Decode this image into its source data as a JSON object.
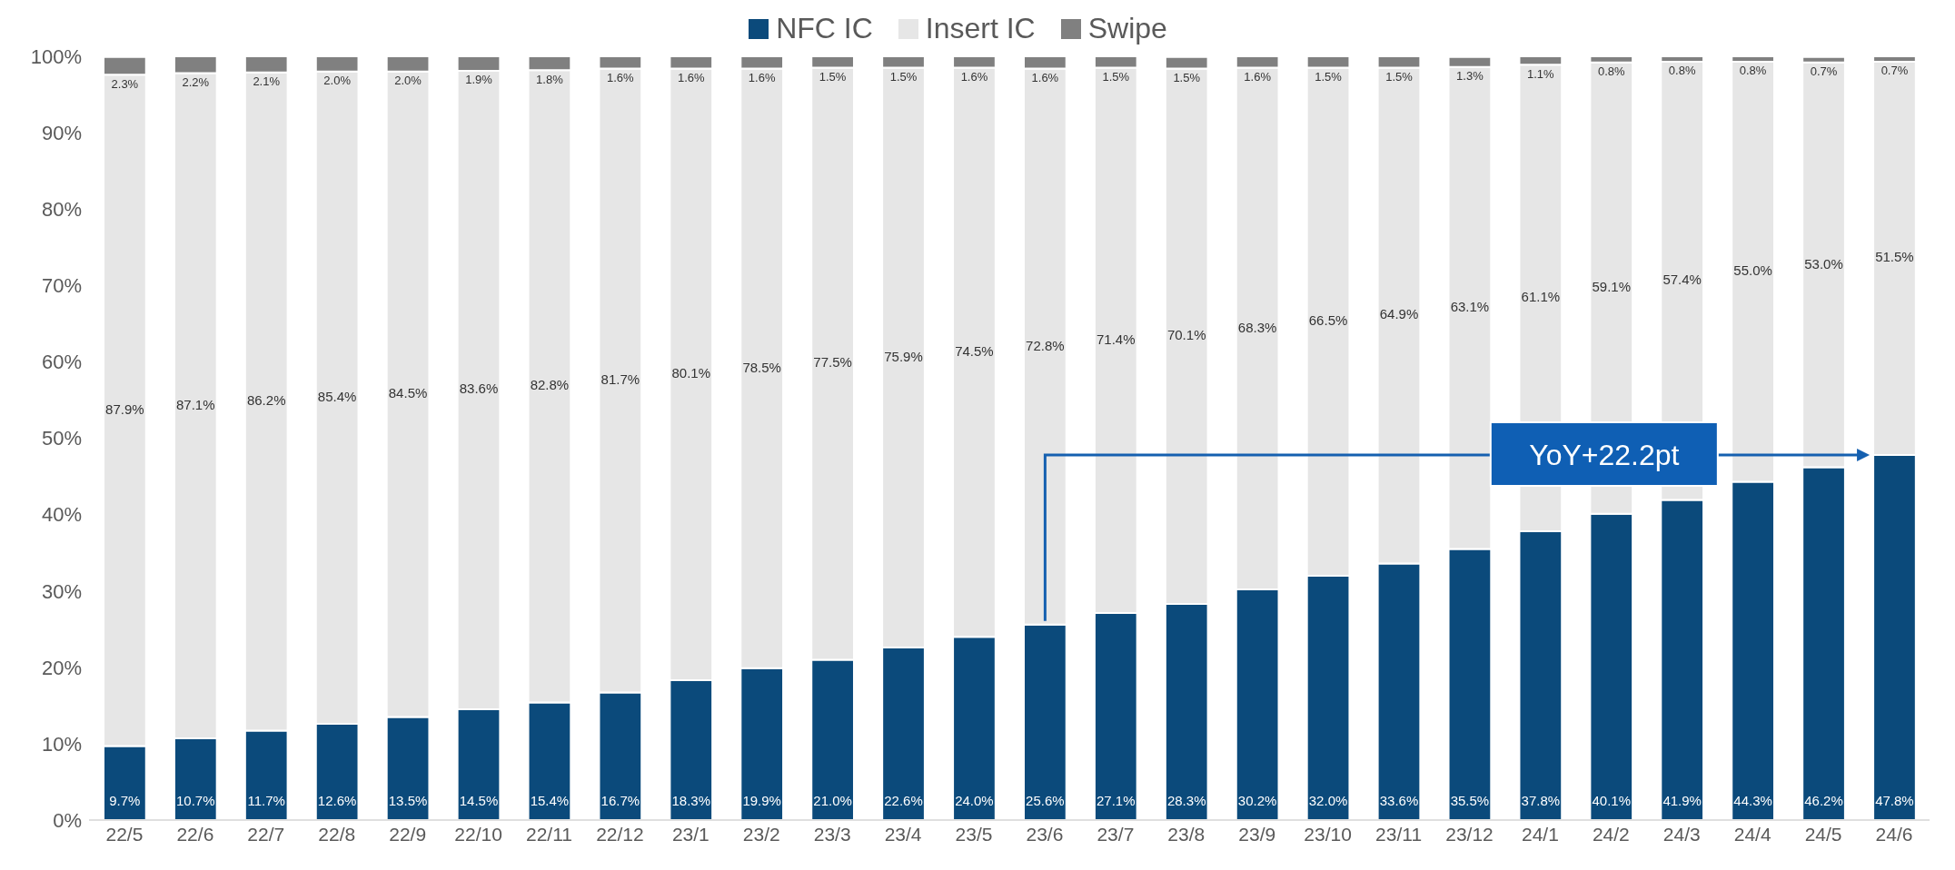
{
  "chart_data": {
    "type": "bar",
    "stacked": true,
    "legend": "top",
    "categories": [
      "22/5",
      "22/6",
      "22/7",
      "22/8",
      "22/9",
      "22/10",
      "22/11",
      "22/12",
      "23/1",
      "23/2",
      "23/3",
      "23/4",
      "23/5",
      "23/6",
      "23/7",
      "23/8",
      "23/9",
      "23/10",
      "23/11",
      "23/12",
      "24/1",
      "24/2",
      "24/3",
      "24/4",
      "24/5",
      "24/6"
    ],
    "series": [
      {
        "name": "NFC IC",
        "color": "#0b4a7b",
        "values": [
          9.7,
          10.7,
          11.7,
          12.6,
          13.5,
          14.5,
          15.4,
          16.7,
          18.3,
          19.9,
          21.0,
          22.6,
          24.0,
          25.6,
          27.1,
          28.3,
          30.2,
          32.0,
          33.6,
          35.5,
          37.8,
          40.1,
          41.9,
          44.3,
          46.2,
          47.8
        ],
        "value_labels": [
          "9.7%",
          "10.7%",
          "11.7%",
          "12.6%",
          "13.5%",
          "14.5%",
          "15.4%",
          "16.7%",
          "18.3%",
          "19.9%",
          "21.0%",
          "22.6%",
          "24.0%",
          "25.6%",
          "27.1%",
          "28.3%",
          "30.2%",
          "32.0%",
          "33.6%",
          "35.5%",
          "37.8%",
          "40.1%",
          "41.9%",
          "44.3%",
          "46.2%",
          "47.8%"
        ]
      },
      {
        "name": "Insert IC",
        "color": "#e6e6e6",
        "values": [
          87.9,
          87.1,
          86.2,
          85.4,
          84.5,
          83.6,
          82.8,
          81.7,
          80.1,
          78.5,
          77.5,
          75.9,
          74.5,
          72.8,
          71.4,
          70.1,
          68.3,
          66.5,
          64.9,
          63.1,
          61.1,
          59.1,
          57.4,
          55.0,
          53.0,
          51.5
        ],
        "value_labels": [
          "87.9%",
          "87.1%",
          "86.2%",
          "85.4%",
          "84.5%",
          "83.6%",
          "82.8%",
          "81.7%",
          "80.1%",
          "78.5%",
          "77.5%",
          "75.9%",
          "74.5%",
          "72.8%",
          "71.4%",
          "70.1%",
          "68.3%",
          "66.5%",
          "64.9%",
          "63.1%",
          "61.1%",
          "59.1%",
          "57.4%",
          "55.0%",
          "53.0%",
          "51.5%"
        ]
      },
      {
        "name": "Swipe",
        "color": "#808080",
        "values": [
          2.3,
          2.2,
          2.1,
          2.0,
          2.0,
          1.9,
          1.8,
          1.6,
          1.6,
          1.6,
          1.5,
          1.5,
          1.6,
          1.6,
          1.5,
          1.5,
          1.6,
          1.5,
          1.5,
          1.3,
          1.1,
          0.8,
          0.8,
          0.8,
          0.7,
          0.7
        ],
        "value_labels": [
          "2.3%",
          "2.2%",
          "2.1%",
          "2.0%",
          "2.0%",
          "1.9%",
          "1.8%",
          "1.6%",
          "1.6%",
          "1.6%",
          "1.5%",
          "1.5%",
          "1.6%",
          "1.6%",
          "1.5%",
          "1.5%",
          "1.6%",
          "1.5%",
          "1.5%",
          "1.3%",
          "1.1%",
          "0.8%",
          "0.8%",
          "0.8%",
          "0.7%",
          "0.7%"
        ]
      }
    ],
    "ylim": [
      0,
      100
    ],
    "yticks": [
      {
        "value": 0,
        "label": "0%"
      },
      {
        "value": 10,
        "label": "10%"
      },
      {
        "value": 20,
        "label": "20%"
      },
      {
        "value": 30,
        "label": "30%"
      },
      {
        "value": 40,
        "label": "40%"
      },
      {
        "value": 50,
        "label": "50%"
      },
      {
        "value": 60,
        "label": "60%"
      },
      {
        "value": 70,
        "label": "70%"
      },
      {
        "value": 80,
        "label": "80%"
      },
      {
        "value": 90,
        "label": "90%"
      },
      {
        "value": 100,
        "label": "100%"
      }
    ],
    "grid": false,
    "annotations": [
      "YoY+22.2pt"
    ]
  }
}
